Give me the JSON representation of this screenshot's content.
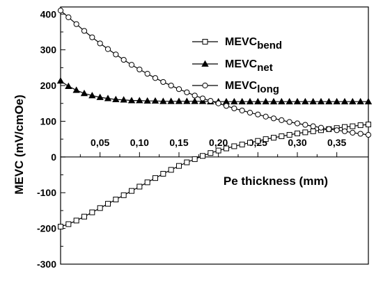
{
  "chart_data": {
    "type": "line",
    "xlabel": "Pe thickness (mm)",
    "ylabel": "MEVC (mV/cmOe)",
    "xlim": [
      0.0,
      0.39
    ],
    "ylim": [
      -300,
      420
    ],
    "x_ticks": [
      0.05,
      0.1,
      0.15,
      0.2,
      0.25,
      0.3,
      0.35
    ],
    "x_tick_labels": [
      "0,05",
      "0,10",
      "0,15",
      "0,20",
      "0,25",
      "0,30",
      "0,35"
    ],
    "y_ticks": [
      -300,
      -200,
      -100,
      0,
      100,
      200,
      300,
      400
    ],
    "y_tick_labels": [
      "-300",
      "-200",
      "-100",
      "0",
      "100",
      "200",
      "300",
      "400"
    ],
    "grid": false,
    "legend_position": "top-right",
    "x": [
      0.0,
      0.01,
      0.02,
      0.03,
      0.04,
      0.05,
      0.06,
      0.07,
      0.08,
      0.09,
      0.1,
      0.11,
      0.12,
      0.13,
      0.14,
      0.15,
      0.16,
      0.17,
      0.18,
      0.19,
      0.2,
      0.21,
      0.22,
      0.23,
      0.24,
      0.25,
      0.26,
      0.27,
      0.28,
      0.29,
      0.3,
      0.31,
      0.32,
      0.33,
      0.34,
      0.35,
      0.36,
      0.37,
      0.38,
      0.39
    ],
    "series": [
      {
        "name": "MEVC",
        "name_sub": "bend",
        "marker": "square-open",
        "values": [
          -195,
          -188,
          -178,
          -167,
          -155,
          -143,
          -131,
          -119,
          -107,
          -95,
          -83,
          -71,
          -59,
          -47,
          -36,
          -25,
          -15,
          -6,
          3,
          11,
          18,
          24,
          30,
          35,
          40,
          45,
          50,
          54,
          58,
          62,
          66,
          69,
          72,
          75,
          78,
          81,
          84,
          86,
          89,
          91
        ]
      },
      {
        "name": "MEVC",
        "name_sub": "net",
        "marker": "triangle-filled",
        "values": [
          213,
          198,
          187,
          178,
          172,
          167,
          164,
          161,
          160,
          158,
          158,
          157,
          157,
          156,
          156,
          156,
          156,
          156,
          156,
          155,
          155,
          155,
          155,
          155,
          155,
          155,
          155,
          155,
          155,
          155,
          155,
          155,
          155,
          155,
          155,
          155,
          155,
          155,
          155,
          155
        ]
      },
      {
        "name": "MEVC",
        "name_sub": "long",
        "marker": "circle-open",
        "values": [
          410,
          391,
          372,
          353,
          335,
          318,
          302,
          287,
          272,
          258,
          245,
          233,
          221,
          210,
          200,
          190,
          181,
          172,
          164,
          157,
          150,
          143,
          136,
          130,
          124,
          119,
          113,
          108,
          103,
          98,
          94,
          90,
          86,
          82,
          78,
          75,
          72,
          68,
          65,
          62
        ]
      }
    ]
  }
}
